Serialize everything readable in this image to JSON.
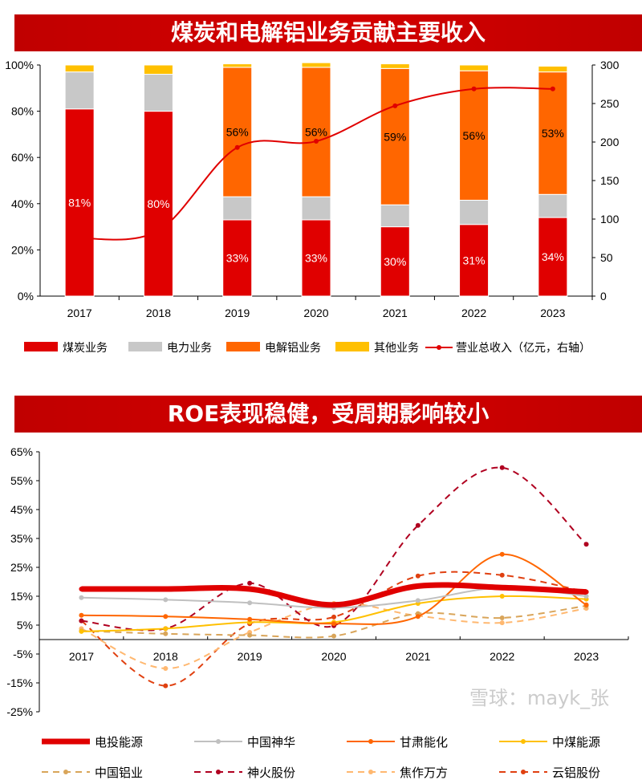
{
  "chart_data": [
    {
      "type": "bar",
      "title": "煤炭和电解铝业务贡献主要收入",
      "categories": [
        "2017",
        "2018",
        "2019",
        "2020",
        "2021",
        "2022",
        "2023"
      ],
      "y_ticks": [
        "0%",
        "20%",
        "40%",
        "60%",
        "80%",
        "100%"
      ],
      "y2_ticks": [
        "0",
        "50",
        "100",
        "150",
        "200",
        "250",
        "300"
      ],
      "ylim": [
        0,
        100
      ],
      "y2lim": [
        0,
        300
      ],
      "series": [
        {
          "name": "煤炭业务",
          "color": "#e00000",
          "values": [
            81,
            80,
            33,
            33,
            30,
            31,
            34
          ],
          "labels": [
            "81%",
            "80%",
            "33%",
            "33%",
            "30%",
            "31%",
            "34%"
          ]
        },
        {
          "name": "电力业务",
          "color": "#c8c8c8",
          "values": [
            16,
            16,
            10,
            10,
            9.5,
            10.5,
            10
          ]
        },
        {
          "name": "电解铝业务",
          "color": "#ff6600",
          "values": [
            0,
            0,
            56,
            56,
            59,
            56,
            53
          ],
          "labels": [
            "",
            "",
            "56%",
            "56%",
            "59%",
            "56%",
            "53%"
          ]
        },
        {
          "name": "其他业务",
          "color": "#ffc000",
          "values": [
            3,
            4,
            1.5,
            2,
            2,
            2.5,
            2.5
          ]
        }
      ],
      "line": {
        "name": "营业总收入（亿元，右轴）",
        "color": "#e00000",
        "values": [
          75,
          85,
          193,
          201,
          247,
          269,
          269
        ]
      }
    },
    {
      "type": "line",
      "title": "ROE表现稳健，受周期影响较小",
      "categories": [
        "2017",
        "2018",
        "2019",
        "2020",
        "2021",
        "2022",
        "2023"
      ],
      "y_ticks": [
        "-25%",
        "-15%",
        "-5%",
        "5%",
        "15%",
        "25%",
        "35%",
        "45%",
        "55%",
        "65%"
      ],
      "ylim": [
        -25,
        65
      ],
      "series": [
        {
          "name": "电投能源",
          "color": "#e00000",
          "dash": false,
          "width": 7,
          "values": [
            17.5,
            17.5,
            17.5,
            12,
            18.5,
            18,
            16.5
          ]
        },
        {
          "name": "中国神华",
          "color": "#c0c0c0",
          "dash": false,
          "width": 2,
          "values": [
            14.5,
            13.8,
            12.7,
            11,
            13.5,
            18,
            15
          ]
        },
        {
          "name": "甘肃能化",
          "color": "#ff6600",
          "dash": false,
          "width": 2,
          "values": [
            8.4,
            8,
            7,
            5.5,
            8,
            29.5,
            12
          ]
        },
        {
          "name": "中煤能源",
          "color": "#ffc000",
          "dash": false,
          "width": 2,
          "values": [
            2.8,
            3.8,
            6,
            6,
            12.5,
            15,
            14
          ]
        },
        {
          "name": "中国铝业",
          "color": "#d9a55a",
          "dash": true,
          "width": 2,
          "values": [
            3,
            2,
            1.5,
            1.2,
            9,
            7.5,
            11.7
          ]
        },
        {
          "name": "神火股份",
          "color": "#b00020",
          "dash": true,
          "width": 2,
          "values": [
            6.5,
            3.8,
            19.5,
            4.8,
            39.5,
            59.5,
            33
          ]
        },
        {
          "name": "焦作万方",
          "color": "#ffb870",
          "dash": true,
          "width": 2,
          "values": [
            3.8,
            -10,
            2.5,
            12.5,
            8.2,
            5.8,
            10.8
          ]
        },
        {
          "name": "云铝股份",
          "color": "#e04010",
          "dash": true,
          "width": 2,
          "values": [
            6.5,
            -16,
            5.5,
            7.8,
            22,
            22.3,
            16.5
          ]
        }
      ]
    }
  ],
  "watermark": "雪球：mayk_张"
}
